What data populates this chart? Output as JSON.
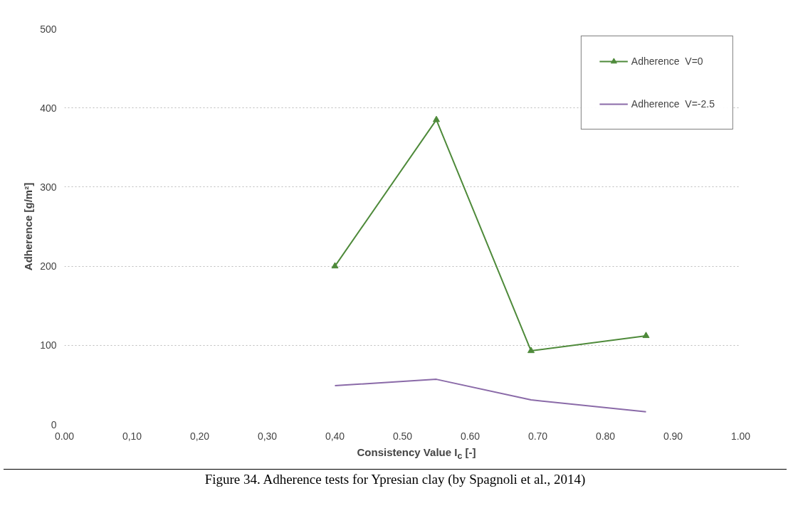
{
  "chart_data": {
    "type": "line",
    "xlabel": "Consistency Value I$_{c}$ [-]",
    "ylabel": "Adherence [g/m²]",
    "annotations": [
      "Figure 34. Adherence tests for Ypresian clay (by Spagnoli et al., 2014)"
    ],
    "xlim": [
      0,
      1.0
    ],
    "ylim": [
      0,
      500
    ],
    "xticks": [
      "0.00",
      {
        "value": 0.1,
        "label": "0,10"
      },
      {
        "value": 0.2,
        "label": "0,20"
      },
      {
        "value": 0.3,
        "label": "0,30"
      },
      {
        "value": 0.4,
        "label": "0,40"
      },
      {
        "value": 0.5,
        "label": "0.50"
      },
      {
        "value": 0.6,
        "label": "0.60"
      },
      {
        "value": 0.7,
        "label": "0.70"
      },
      {
        "value": 0.8,
        "label": "0.80"
      },
      {
        "value": 0.9,
        "label": "0.90"
      },
      {
        "value": 1.0,
        "label": "1.00"
      }
    ],
    "yticks": [
      0,
      100,
      200,
      300,
      400,
      500
    ],
    "grid": "y",
    "legend": "top right",
    "series": [
      {
        "name": "Adherence  V=0",
        "color": "#4e8a3a",
        "marker": "triangle",
        "x": [
          0.4,
          0.55,
          0.69,
          0.86
        ],
        "values": [
          200,
          385,
          93,
          112
        ]
      },
      {
        "name": "Adherence  V=-2.5",
        "color": "#8a6aa8",
        "marker": "none",
        "x": [
          0.4,
          0.55,
          0.69,
          0.86
        ],
        "values": [
          49,
          57,
          31,
          16
        ]
      }
    ]
  }
}
